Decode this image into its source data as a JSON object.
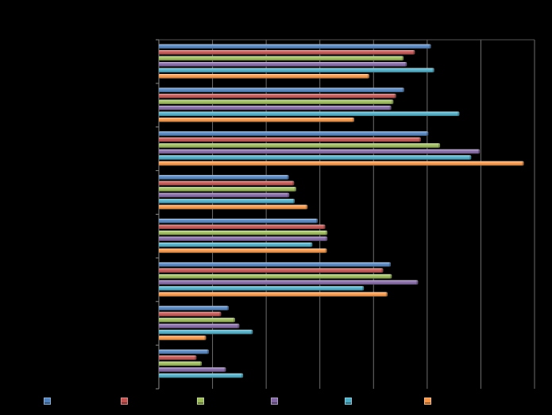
{
  "chart_data": {
    "type": "bar",
    "orientation": "horizontal",
    "title": "",
    "xlabel": "",
    "ylabel": "",
    "xlim": [
      0,
      7
    ],
    "grid": "vertical",
    "legend_position": "bottom",
    "group_count": 8,
    "series": [
      {
        "color": "#4f81bd",
        "values": [
          5.07,
          4.57,
          5.02,
          2.42,
          2.96,
          4.32,
          1.3,
          0.93
        ]
      },
      {
        "color": "#c0504d",
        "values": [
          4.77,
          4.42,
          4.88,
          2.52,
          3.1,
          4.18,
          1.16,
          0.7
        ]
      },
      {
        "color": "#9bbb59",
        "values": [
          4.56,
          4.37,
          5.24,
          2.56,
          3.14,
          4.34,
          1.42,
          0.8
        ]
      },
      {
        "color": "#8064a2",
        "values": [
          4.62,
          4.33,
          5.98,
          2.43,
          3.14,
          4.83,
          1.5,
          1.25
        ]
      },
      {
        "color": "#4bacc6",
        "values": [
          5.13,
          5.6,
          5.82,
          2.53,
          2.86,
          3.82,
          1.75,
          1.57
        ]
      },
      {
        "color": "#f79646",
        "values": [
          3.92,
          3.64,
          6.8,
          2.77,
          3.13,
          4.26,
          0.88,
          null
        ]
      }
    ]
  }
}
